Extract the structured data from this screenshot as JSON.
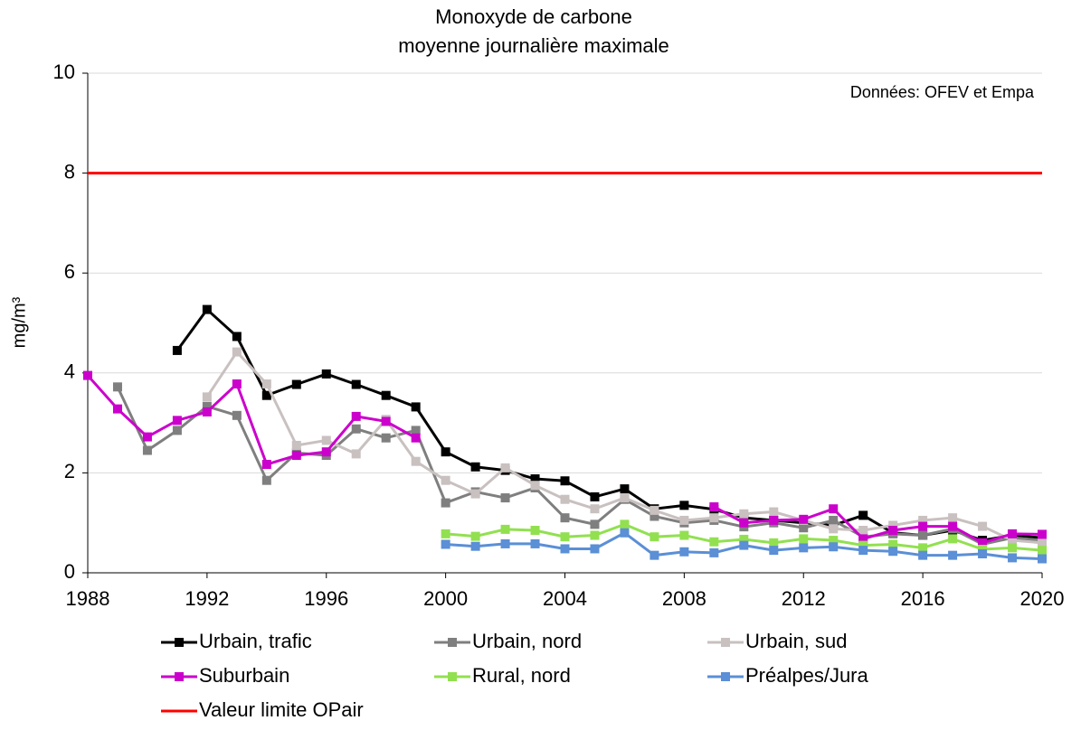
{
  "chart_data": {
    "type": "line",
    "title": "Monoxyde de carbone",
    "subtitle": "moyenne journalière maximale",
    "annotation": "Données: OFEV et Empa",
    "y_label": "mg/m³",
    "x": [
      1988,
      1989,
      1990,
      1991,
      1992,
      1993,
      1994,
      1995,
      1996,
      1997,
      1998,
      1999,
      2000,
      2001,
      2002,
      2003,
      2004,
      2005,
      2006,
      2007,
      2008,
      2009,
      2010,
      2011,
      2012,
      2013,
      2014,
      2015,
      2016,
      2017,
      2018,
      2019,
      2020
    ],
    "xlim": [
      1988,
      2020
    ],
    "xticks": [
      1988,
      1992,
      1996,
      2000,
      2004,
      2008,
      2012,
      2016,
      2020
    ],
    "ylim": [
      0,
      10
    ],
    "yticks": [
      0,
      2,
      4,
      6,
      8,
      10
    ],
    "grid": true,
    "series": [
      {
        "name": "Urbain, trafic",
        "color": "#000000",
        "values": [
          null,
          null,
          null,
          4.45,
          5.27,
          4.73,
          3.55,
          3.77,
          3.98,
          3.77,
          3.55,
          3.32,
          2.42,
          2.12,
          2.05,
          1.88,
          1.84,
          1.52,
          1.68,
          1.28,
          1.35,
          1.27,
          1.1,
          1.05,
          1.0,
          0.95,
          1.15,
          0.8,
          0.75,
          0.85,
          0.65,
          0.75,
          0.7
        ]
      },
      {
        "name": "Urbain, nord",
        "color": "#7f7f7f",
        "values": [
          null,
          3.72,
          2.45,
          2.85,
          3.33,
          3.15,
          1.85,
          2.4,
          2.35,
          2.88,
          2.7,
          2.85,
          1.4,
          1.62,
          1.5,
          1.7,
          1.1,
          0.97,
          1.47,
          1.13,
          1.0,
          1.05,
          0.92,
          1.0,
          0.9,
          1.05,
          0.72,
          0.78,
          0.75,
          0.88,
          0.57,
          0.7,
          0.65
        ]
      },
      {
        "name": "Urbain, sud",
        "color": "#c9c0c0",
        "values": [
          null,
          null,
          null,
          null,
          3.52,
          4.42,
          3.78,
          2.55,
          2.65,
          2.38,
          3.07,
          2.23,
          1.85,
          1.58,
          2.1,
          1.75,
          1.47,
          1.28,
          1.5,
          1.25,
          1.05,
          1.1,
          1.18,
          1.22,
          1.05,
          0.88,
          0.85,
          0.95,
          1.05,
          1.1,
          0.93,
          0.65,
          0.6
        ]
      },
      {
        "name": "Suburbain",
        "color": "#cc00cc",
        "values": [
          3.95,
          3.28,
          2.72,
          3.05,
          3.22,
          3.78,
          2.17,
          2.35,
          2.42,
          3.13,
          3.03,
          2.7,
          null,
          null,
          null,
          null,
          null,
          null,
          null,
          null,
          null,
          1.32,
          1.0,
          1.05,
          1.07,
          1.28,
          0.68,
          0.85,
          0.93,
          0.93,
          0.6,
          0.78,
          0.77
        ]
      },
      {
        "name": "Rural, nord",
        "color": "#92e050",
        "values": [
          null,
          null,
          null,
          null,
          null,
          null,
          null,
          null,
          null,
          null,
          null,
          null,
          0.78,
          0.73,
          0.87,
          0.85,
          0.72,
          0.75,
          0.97,
          0.72,
          0.75,
          0.62,
          0.67,
          0.6,
          0.68,
          0.65,
          0.55,
          0.57,
          0.5,
          0.68,
          0.47,
          0.5,
          0.45
        ]
      },
      {
        "name": "Préalpes/Jura",
        "color": "#5b8fd6",
        "values": [
          null,
          null,
          null,
          null,
          null,
          null,
          null,
          null,
          null,
          null,
          null,
          null,
          0.57,
          0.53,
          0.58,
          0.58,
          0.48,
          0.48,
          0.8,
          0.35,
          0.42,
          0.4,
          0.55,
          0.45,
          0.5,
          0.52,
          0.45,
          0.43,
          0.35,
          0.35,
          0.38,
          0.3,
          0.28
        ]
      }
    ],
    "limit": {
      "name": "Valeur limite OPair",
      "color": "#ff0000",
      "value": 8
    }
  }
}
